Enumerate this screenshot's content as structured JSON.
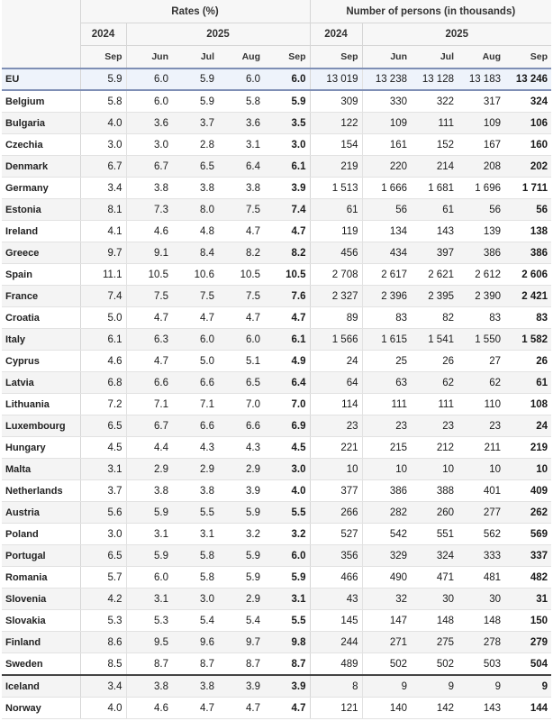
{
  "header": {
    "rates_label": "Rates (%)",
    "persons_label": "Number of persons (in thousands)",
    "year_2024": "2024",
    "year_2025": "2025",
    "months": [
      "Sep",
      "Jun",
      "Jul",
      "Aug",
      "Sep"
    ]
  },
  "rows": [
    {
      "country": "EU",
      "rates": [
        "5.9",
        "6.0",
        "5.9",
        "6.0",
        "6.0"
      ],
      "persons": [
        "13 019",
        "13 238",
        "13 128",
        "13 183",
        "13 246"
      ]
    },
    {
      "country": "Belgium",
      "rates": [
        "5.8",
        "6.0",
        "5.9",
        "5.8",
        "5.9"
      ],
      "persons": [
        "309",
        "330",
        "322",
        "317",
        "324"
      ]
    },
    {
      "country": "Bulgaria",
      "rates": [
        "4.0",
        "3.6",
        "3.7",
        "3.6",
        "3.5"
      ],
      "persons": [
        "122",
        "109",
        "111",
        "109",
        "106"
      ]
    },
    {
      "country": "Czechia",
      "rates": [
        "3.0",
        "3.0",
        "2.8",
        "3.1",
        "3.0"
      ],
      "persons": [
        "154",
        "161",
        "152",
        "167",
        "160"
      ]
    },
    {
      "country": "Denmark",
      "rates": [
        "6.7",
        "6.7",
        "6.5",
        "6.4",
        "6.1"
      ],
      "persons": [
        "219",
        "220",
        "214",
        "208",
        "202"
      ]
    },
    {
      "country": "Germany",
      "rates": [
        "3.4",
        "3.8",
        "3.8",
        "3.8",
        "3.9"
      ],
      "persons": [
        "1 513",
        "1 666",
        "1 681",
        "1 696",
        "1 711"
      ]
    },
    {
      "country": "Estonia",
      "rates": [
        "8.1",
        "7.3",
        "8.0",
        "7.5",
        "7.4"
      ],
      "persons": [
        "61",
        "56",
        "61",
        "56",
        "56"
      ]
    },
    {
      "country": "Ireland",
      "rates": [
        "4.1",
        "4.6",
        "4.8",
        "4.7",
        "4.7"
      ],
      "persons": [
        "119",
        "134",
        "143",
        "139",
        "138"
      ]
    },
    {
      "country": "Greece",
      "rates": [
        "9.7",
        "9.1",
        "8.4",
        "8.2",
        "8.2"
      ],
      "persons": [
        "456",
        "434",
        "397",
        "386",
        "386"
      ]
    },
    {
      "country": "Spain",
      "rates": [
        "11.1",
        "10.5",
        "10.6",
        "10.5",
        "10.5"
      ],
      "persons": [
        "2 708",
        "2 617",
        "2 621",
        "2 612",
        "2 606"
      ]
    },
    {
      "country": "France",
      "rates": [
        "7.4",
        "7.5",
        "7.5",
        "7.5",
        "7.6"
      ],
      "persons": [
        "2 327",
        "2 396",
        "2 395",
        "2 390",
        "2 421"
      ]
    },
    {
      "country": "Croatia",
      "rates": [
        "5.0",
        "4.7",
        "4.7",
        "4.7",
        "4.7"
      ],
      "persons": [
        "89",
        "83",
        "82",
        "83",
        "83"
      ]
    },
    {
      "country": "Italy",
      "rates": [
        "6.1",
        "6.3",
        "6.0",
        "6.0",
        "6.1"
      ],
      "persons": [
        "1 566",
        "1 615",
        "1 541",
        "1 550",
        "1 582"
      ]
    },
    {
      "country": "Cyprus",
      "rates": [
        "4.6",
        "4.7",
        "5.0",
        "5.1",
        "4.9"
      ],
      "persons": [
        "24",
        "25",
        "26",
        "27",
        "26"
      ]
    },
    {
      "country": "Latvia",
      "rates": [
        "6.8",
        "6.6",
        "6.6",
        "6.5",
        "6.4"
      ],
      "persons": [
        "64",
        "63",
        "62",
        "62",
        "61"
      ]
    },
    {
      "country": "Lithuania",
      "rates": [
        "7.2",
        "7.1",
        "7.1",
        "7.0",
        "7.0"
      ],
      "persons": [
        "114",
        "111",
        "111",
        "110",
        "108"
      ]
    },
    {
      "country": "Luxembourg",
      "rates": [
        "6.5",
        "6.7",
        "6.6",
        "6.6",
        "6.9"
      ],
      "persons": [
        "23",
        "23",
        "23",
        "23",
        "24"
      ]
    },
    {
      "country": "Hungary",
      "rates": [
        "4.5",
        "4.4",
        "4.3",
        "4.3",
        "4.5"
      ],
      "persons": [
        "221",
        "215",
        "212",
        "211",
        "219"
      ]
    },
    {
      "country": "Malta",
      "rates": [
        "3.1",
        "2.9",
        "2.9",
        "2.9",
        "3.0"
      ],
      "persons": [
        "10",
        "10",
        "10",
        "10",
        "10"
      ]
    },
    {
      "country": "Netherlands",
      "rates": [
        "3.7",
        "3.8",
        "3.8",
        "3.9",
        "4.0"
      ],
      "persons": [
        "377",
        "386",
        "388",
        "401",
        "409"
      ]
    },
    {
      "country": "Austria",
      "rates": [
        "5.6",
        "5.9",
        "5.5",
        "5.9",
        "5.5"
      ],
      "persons": [
        "266",
        "282",
        "260",
        "277",
        "262"
      ]
    },
    {
      "country": "Poland",
      "rates": [
        "3.0",
        "3.1",
        "3.1",
        "3.2",
        "3.2"
      ],
      "persons": [
        "527",
        "542",
        "551",
        "562",
        "569"
      ]
    },
    {
      "country": "Portugal",
      "rates": [
        "6.5",
        "5.9",
        "5.8",
        "5.9",
        "6.0"
      ],
      "persons": [
        "356",
        "329",
        "324",
        "333",
        "337"
      ]
    },
    {
      "country": "Romania",
      "rates": [
        "5.7",
        "6.0",
        "5.8",
        "5.9",
        "5.9"
      ],
      "persons": [
        "466",
        "490",
        "471",
        "481",
        "482"
      ]
    },
    {
      "country": "Slovenia",
      "rates": [
        "4.2",
        "3.1",
        "3.0",
        "2.9",
        "3.1"
      ],
      "persons": [
        "43",
        "32",
        "30",
        "30",
        "31"
      ]
    },
    {
      "country": "Slovakia",
      "rates": [
        "5.3",
        "5.3",
        "5.4",
        "5.4",
        "5.5"
      ],
      "persons": [
        "145",
        "147",
        "148",
        "148",
        "150"
      ]
    },
    {
      "country": "Finland",
      "rates": [
        "8.6",
        "9.5",
        "9.6",
        "9.7",
        "9.8"
      ],
      "persons": [
        "244",
        "271",
        "275",
        "278",
        "279"
      ]
    },
    {
      "country": "Sweden",
      "rates": [
        "8.5",
        "8.7",
        "8.7",
        "8.7",
        "8.7"
      ],
      "persons": [
        "489",
        "502",
        "502",
        "503",
        "504"
      ]
    },
    {
      "country": "Iceland",
      "rates": [
        "3.4",
        "3.8",
        "3.8",
        "3.9",
        "3.9"
      ],
      "persons": [
        "8",
        "9",
        "9",
        "9",
        "9"
      ]
    },
    {
      "country": "Norway",
      "rates": [
        "4.0",
        "4.6",
        "4.7",
        "4.7",
        "4.7"
      ],
      "persons": [
        "121",
        "140",
        "142",
        "143",
        "144"
      ]
    }
  ]
}
